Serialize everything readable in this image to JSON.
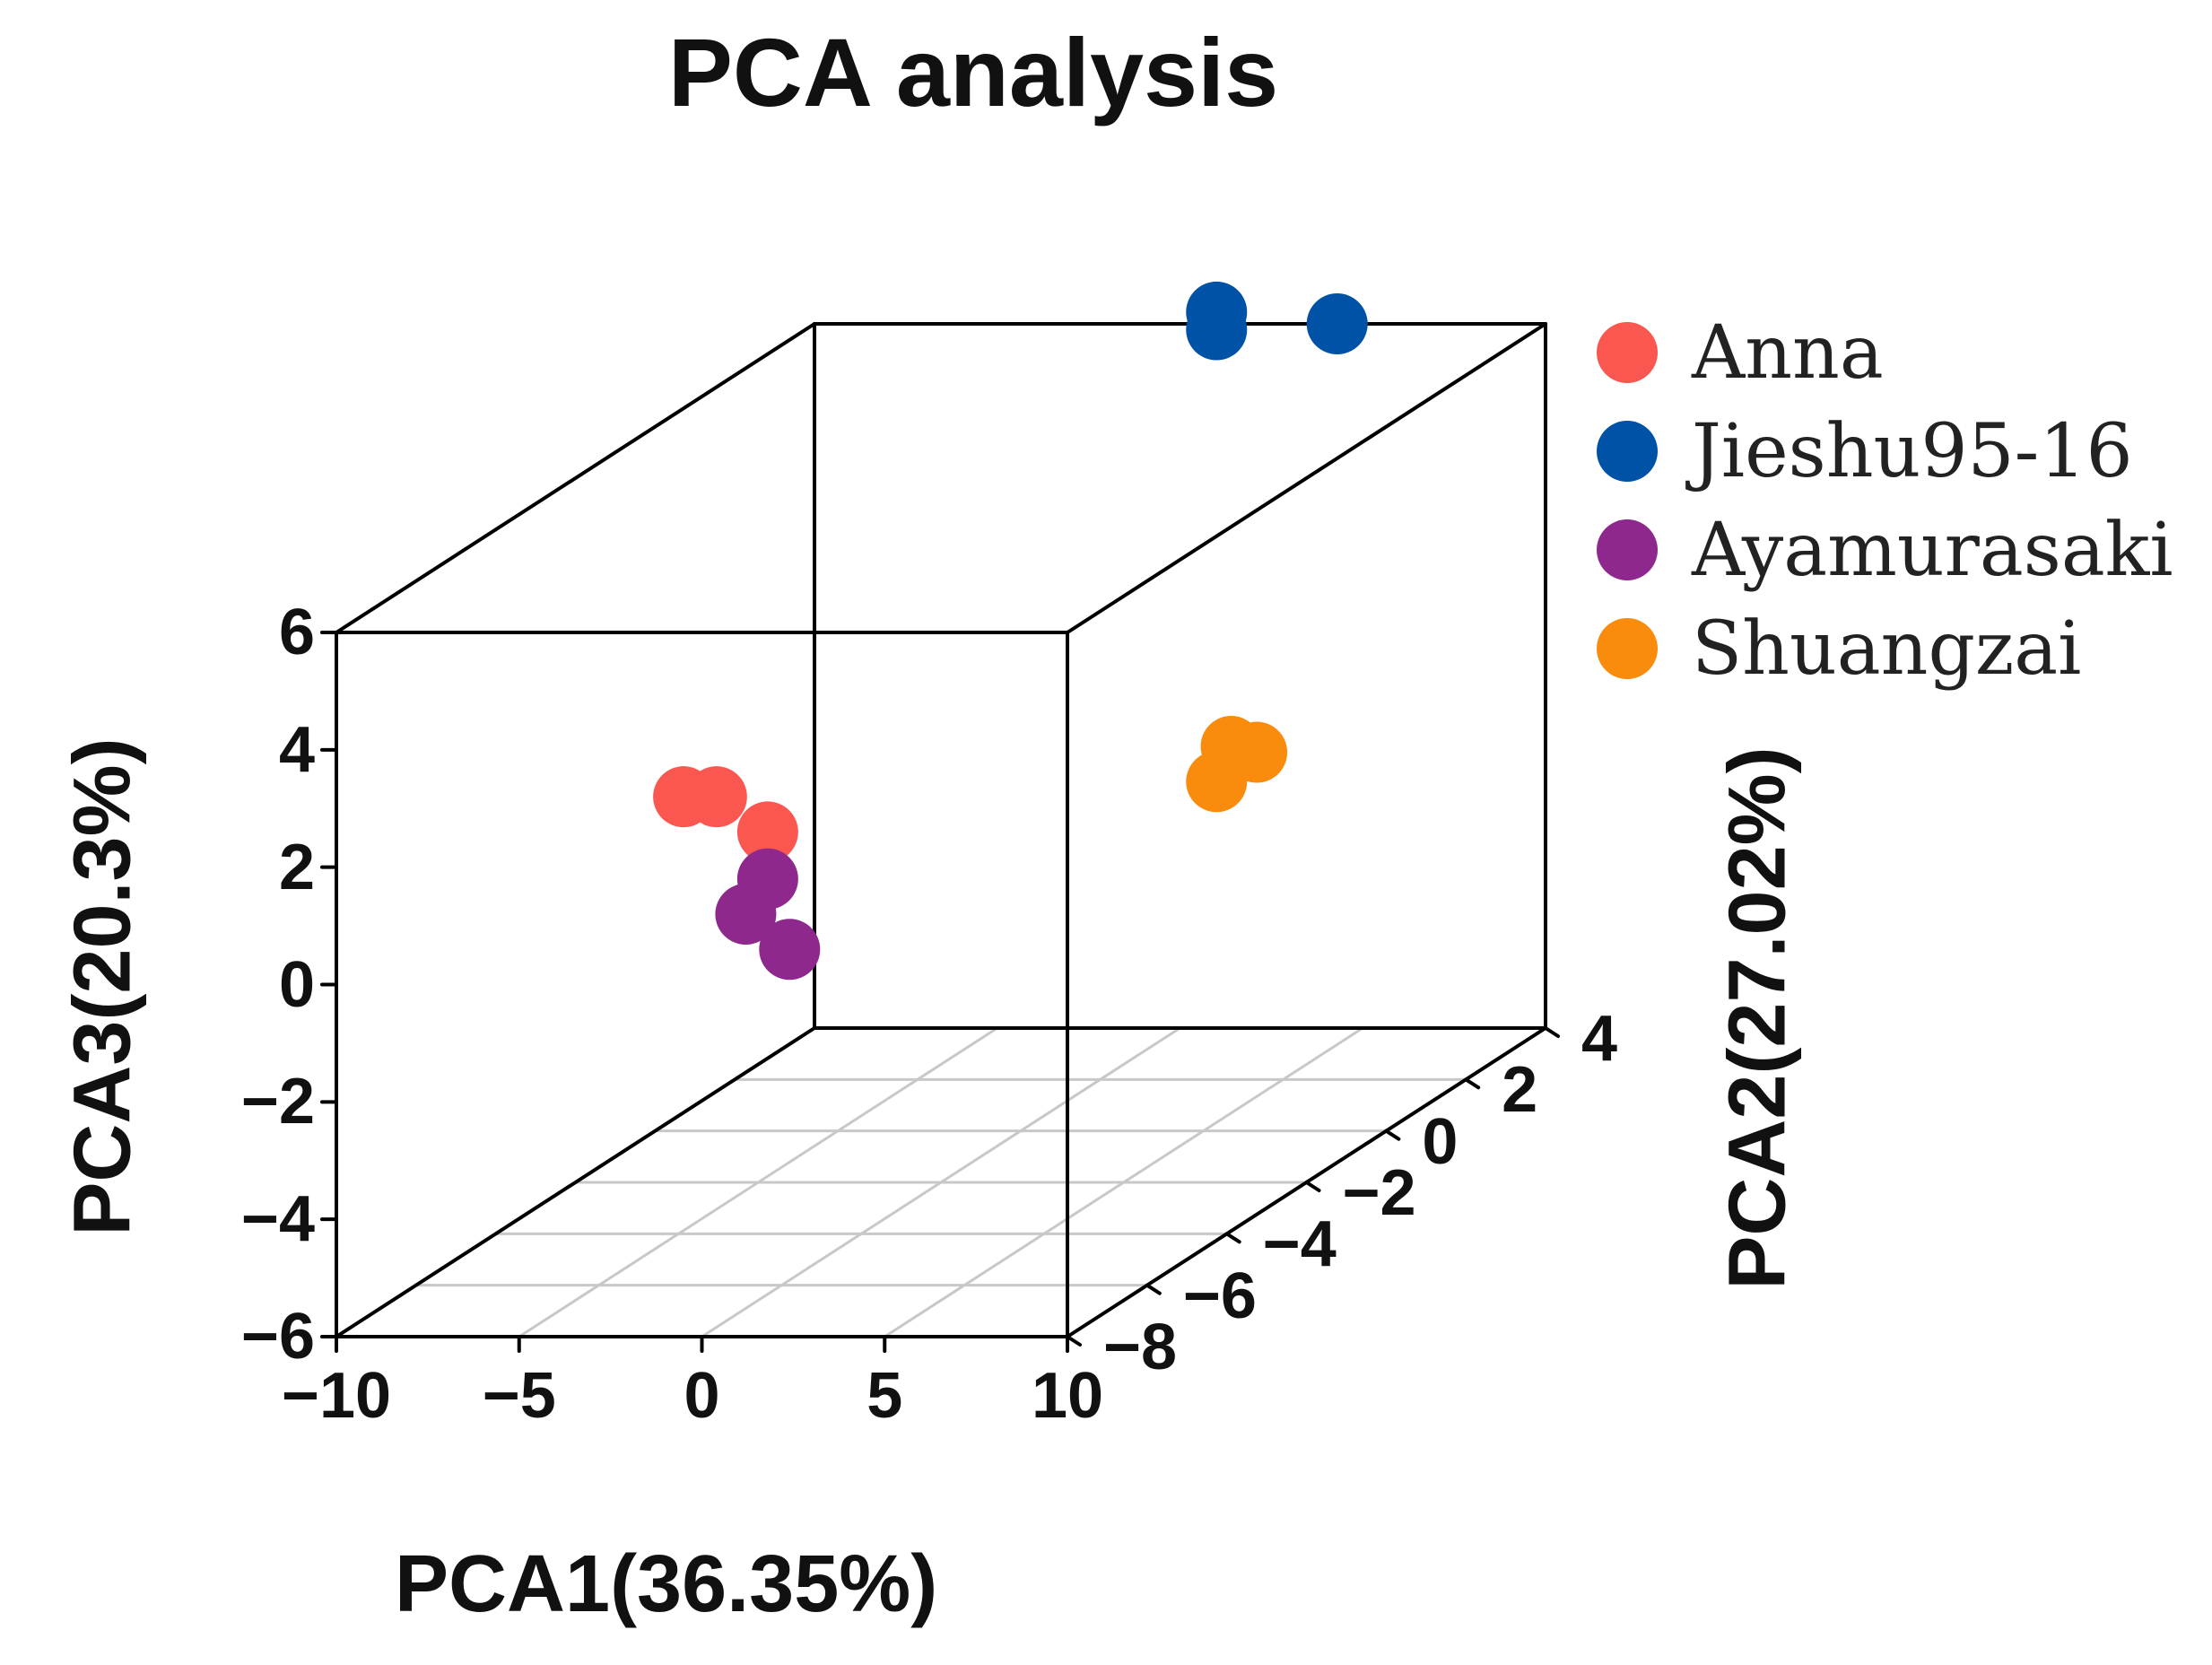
{
  "chart_data": {
    "type": "scatter",
    "title": "PCA analysis",
    "xlabel": "PCA1(36.35%)",
    "ylabel": "PCA3(20.3%)",
    "zlabel": "PCA2(27.02%)",
    "xlim": [
      -10,
      10
    ],
    "ylim": [
      -6,
      6
    ],
    "zlim": [
      -8,
      4
    ],
    "x_ticks": [
      "−10",
      "−5",
      "0",
      "5",
      "10"
    ],
    "y_ticks": [
      "−6",
      "−4",
      "−2",
      "0",
      "2",
      "4",
      "6"
    ],
    "z_ticks": [
      "−8",
      "−6",
      "−4",
      "−2",
      "0",
      "2",
      "4"
    ],
    "x_tick_values": [
      -10,
      -5,
      0,
      5,
      10
    ],
    "y_tick_values": [
      -6,
      -4,
      -2,
      0,
      2,
      4,
      6
    ],
    "z_tick_values": [
      -8,
      -6,
      -4,
      -2,
      0,
      2,
      4
    ],
    "legend_position": "top-right",
    "series": [
      {
        "name": "Anna",
        "color": "#f9574f",
        "points": [
          {
            "x": -0.5,
            "y": 3.2,
            "z": -8.0
          },
          {
            "x": 0.4,
            "y": 3.2,
            "z": -8.0
          },
          {
            "x": 1.8,
            "y": 2.6,
            "z": -8.0
          }
        ]
      },
      {
        "name": "Jieshu95-16",
        "color": "#0052a6",
        "points": [
          {
            "x": 1.0,
            "y": 5.9,
            "z": 4.0
          },
          {
            "x": 1.0,
            "y": 6.2,
            "z": 4.0
          },
          {
            "x": 4.3,
            "y": 6.0,
            "z": 4.0
          }
        ]
      },
      {
        "name": "Ayamurasaki",
        "color": "#8e288c",
        "points": [
          {
            "x": 1.8,
            "y": 1.8,
            "z": -8.0
          },
          {
            "x": 1.2,
            "y": 1.2,
            "z": -8.0
          },
          {
            "x": 2.4,
            "y": 0.6,
            "z": -8.0
          }
        ]
      },
      {
        "name": "Shuangzai",
        "color": "#f98b0d",
        "points": [
          {
            "x": 1.4,
            "y": -1.2,
            "z": 4.0
          },
          {
            "x": 2.1,
            "y": -1.3,
            "z": 4.0
          },
          {
            "x": 1.0,
            "y": -1.8,
            "z": 4.0
          }
        ]
      }
    ]
  }
}
